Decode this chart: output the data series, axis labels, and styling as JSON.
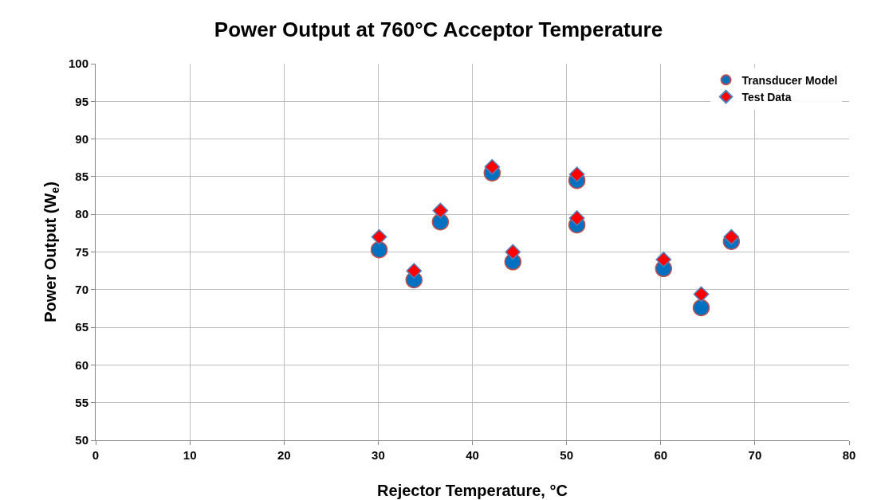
{
  "chart_data": {
    "type": "scatter",
    "title": "Power Output at 760°C Acceptor Temperature",
    "xlabel": "Rejector Temperature, °C",
    "ylabel": "Power Output (W$_{e}$)",
    "x": [
      30.1,
      33.8,
      36.6,
      42.1,
      44.3,
      51.1,
      51.1,
      60.3,
      64.3,
      67.5
    ],
    "series": [
      {
        "name": "Transducer Model",
        "color": "#0070c0",
        "marker": "circle",
        "values": [
          75.3,
          71.3,
          79.0,
          85.5,
          73.7,
          84.5,
          78.6,
          72.8,
          67.6,
          76.4
        ]
      },
      {
        "name": "Test Data",
        "color": "#ff0000",
        "marker": "diamond",
        "values": [
          77.0,
          72.5,
          80.5,
          86.3,
          75.0,
          85.3,
          79.5,
          74.0,
          69.4,
          77.0
        ]
      }
    ],
    "xlim": [
      0,
      80
    ],
    "xticks": [
      0,
      10,
      20,
      30,
      40,
      50,
      60,
      70,
      80
    ],
    "ylim": [
      50,
      100
    ],
    "yticks": [
      50,
      55,
      60,
      65,
      70,
      75,
      80,
      85,
      90,
      95,
      100
    ],
    "grid": true,
    "legend": "top right"
  }
}
